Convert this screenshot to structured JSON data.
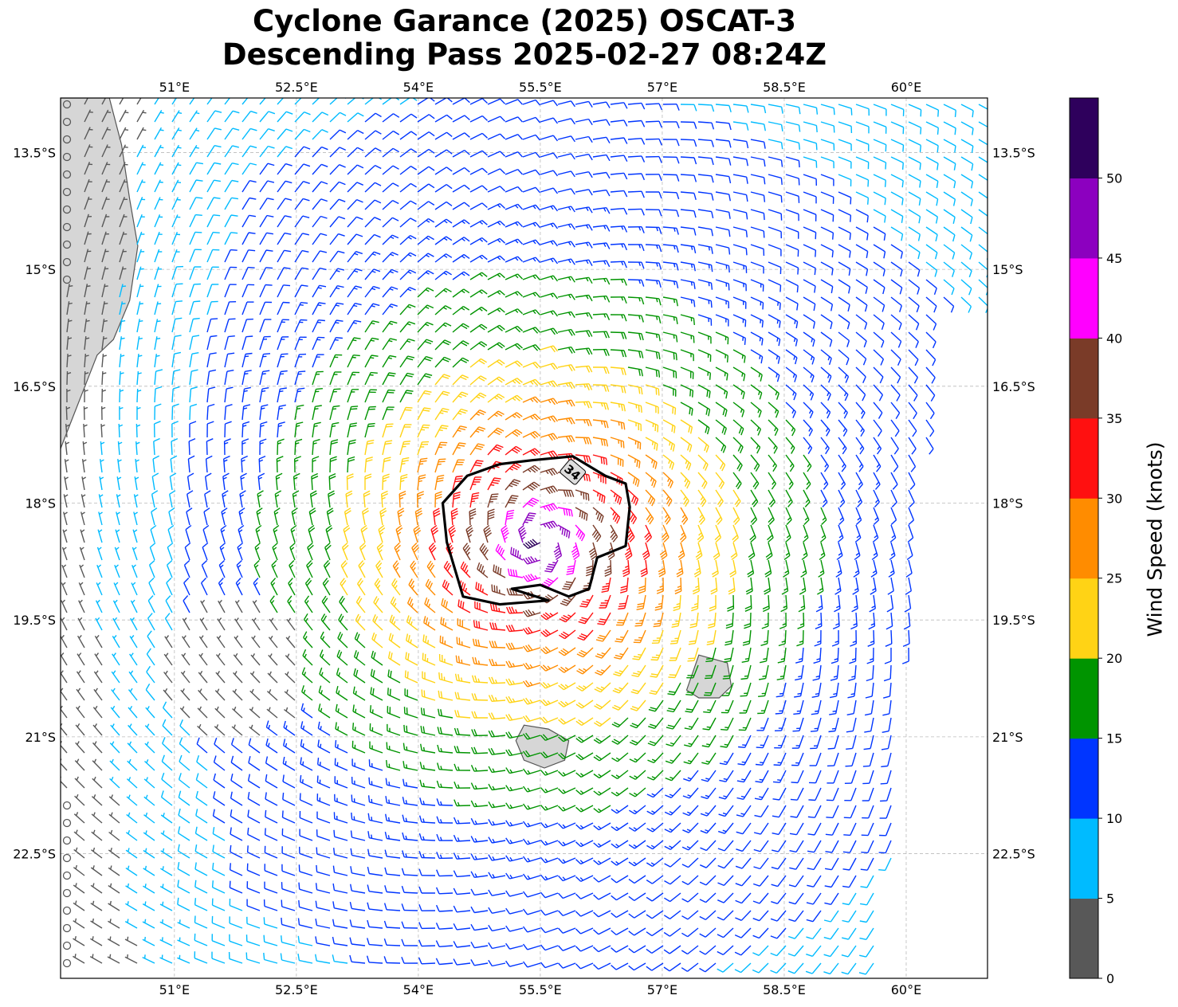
{
  "title": {
    "line1": "Cyclone Garance (2025) OSCAT-3",
    "line2": "Descending Pass 2025-02-27 08:24Z"
  },
  "map": {
    "lon_range": [
      49.6,
      61.0
    ],
    "lat_range": [
      -24.1,
      -12.8
    ],
    "lon_ticks": [
      {
        "value": 51.0,
        "label": "51°E"
      },
      {
        "value": 52.5,
        "label": "52.5°E"
      },
      {
        "value": 54.0,
        "label": "54°E"
      },
      {
        "value": 55.5,
        "label": "55.5°E"
      },
      {
        "value": 57.0,
        "label": "57°E"
      },
      {
        "value": 58.5,
        "label": "58.5°E"
      },
      {
        "value": 60.0,
        "label": "60°E"
      }
    ],
    "lat_ticks": [
      {
        "value": -13.5,
        "label": "13.5°S"
      },
      {
        "value": -15.0,
        "label": "15°S"
      },
      {
        "value": -16.5,
        "label": "16.5°S"
      },
      {
        "value": -18.0,
        "label": "18°S"
      },
      {
        "value": -19.5,
        "label": "19.5°S"
      },
      {
        "value": -21.0,
        "label": "21°S"
      },
      {
        "value": -22.5,
        "label": "22.5°S"
      }
    ],
    "gridlines": true,
    "cyclone_center": {
      "lon": 55.5,
      "lat": -18.5
    },
    "contour_label": "34",
    "contour_34kt": [
      [
        55.4,
        -17.45
      ],
      [
        55.9,
        -17.4
      ],
      [
        56.3,
        -17.65
      ],
      [
        56.55,
        -17.75
      ],
      [
        56.6,
        -18.05
      ],
      [
        56.55,
        -18.55
      ],
      [
        56.2,
        -18.7
      ],
      [
        56.1,
        -19.1
      ],
      [
        55.85,
        -19.2
      ],
      [
        55.5,
        -19.05
      ],
      [
        55.15,
        -19.1
      ],
      [
        55.6,
        -19.25
      ],
      [
        55.0,
        -19.3
      ],
      [
        54.55,
        -19.2
      ],
      [
        54.45,
        -18.85
      ],
      [
        54.35,
        -18.5
      ],
      [
        54.3,
        -18.0
      ],
      [
        54.6,
        -17.65
      ],
      [
        55.0,
        -17.5
      ]
    ],
    "land": [
      {
        "name": "Madagascar",
        "points": [
          [
            49.6,
            -12.8
          ],
          [
            50.2,
            -12.8
          ],
          [
            50.35,
            -13.4
          ],
          [
            50.45,
            -14.1
          ],
          [
            50.55,
            -14.7
          ],
          [
            50.45,
            -15.4
          ],
          [
            50.25,
            -15.9
          ],
          [
            50.05,
            -16.1
          ],
          [
            49.75,
            -16.9
          ],
          [
            49.6,
            -17.3
          ]
        ]
      },
      {
        "name": "Reunion",
        "points": [
          [
            55.3,
            -20.85
          ],
          [
            55.6,
            -20.9
          ],
          [
            55.85,
            -21.05
          ],
          [
            55.8,
            -21.3
          ],
          [
            55.55,
            -21.4
          ],
          [
            55.3,
            -21.3
          ],
          [
            55.2,
            -21.05
          ]
        ]
      },
      {
        "name": "Mauritius",
        "points": [
          [
            57.45,
            -19.95
          ],
          [
            57.8,
            -20.05
          ],
          [
            57.85,
            -20.35
          ],
          [
            57.7,
            -20.5
          ],
          [
            57.45,
            -20.5
          ],
          [
            57.3,
            -20.4
          ]
        ]
      }
    ]
  },
  "colorbar": {
    "title": "Wind Speed (knots)",
    "bins": [
      {
        "from": 0,
        "to": 5,
        "color": "#585858"
      },
      {
        "from": 5,
        "to": 10,
        "color": "#00bbff"
      },
      {
        "from": 10,
        "to": 15,
        "color": "#0035ff"
      },
      {
        "from": 15,
        "to": 20,
        "color": "#009400"
      },
      {
        "from": 20,
        "to": 25,
        "color": "#ffd315"
      },
      {
        "from": 25,
        "to": 30,
        "color": "#ff8c00"
      },
      {
        "from": 30,
        "to": 35,
        "color": "#ff1010"
      },
      {
        "from": 35,
        "to": 40,
        "color": "#7a3b28"
      },
      {
        "from": 40,
        "to": 45,
        "color": "#ff00ff"
      },
      {
        "from": 45,
        "to": 50,
        "color": "#8c00bf"
      },
      {
        "from": 50,
        "to": 55,
        "color": "#2e005c"
      }
    ],
    "tick_labels": [
      "0",
      "5",
      "10",
      "15",
      "20",
      "25",
      "30",
      "35",
      "40",
      "45",
      "50"
    ]
  }
}
